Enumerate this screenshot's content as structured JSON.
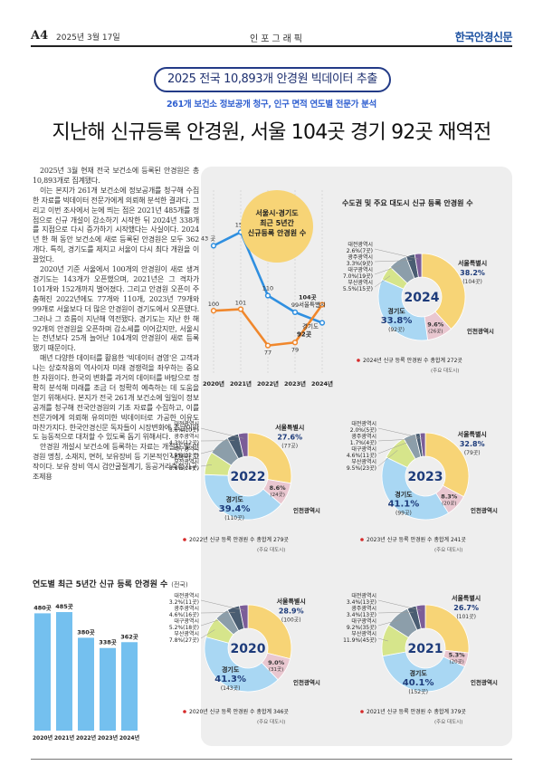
{
  "masthead": {
    "page": "A4",
    "date": "2025년 3월 17일",
    "section": "인포그래픽",
    "brand": "한국안경신문"
  },
  "banner": "2025 전국 10,893개 안경원 빅데이터 추출",
  "subtitle": "261개 보건소 정보공개 청구, 인구 면적 연도별 전문가 분석",
  "headline": "지난해 신규등록 안경원, 서울 104곳 경기 92곳 재역전",
  "article": [
    "2025년 3월 현재 전국 보건소에 등록된 안경원은 총 10,893개로 집계됐다.",
    "이는 본지가 261개 보건소에 정보공개를 청구해 수집한 자료를 빅데이터 전문가에게 의뢰해 분석한 결과다. 그리고 이번 조사에서 눈에 띄는 점은 2021년 485개를 정점으로 신규 개설이 감소하기 시작한 뒤 2024년 338개를 지점으로 다시 증가하기 시작했다는 사실이다. 2024년 한 해 동안 보건소에 새로 등록된 안경원은 모두 362개다. 특히, 경기도를 제치고 서울이 다시 최다 개원을 이끌었다.",
    "2020년 기준 서울에서 100개의 안경원이 새로 생겨 경기도는 143개가 오픈했으며, 2021년은 그 격차가 101개와 152개까지 벌어졌다. 그리고 안경원 오픈이 주춤해진 2022년에도 77개와 110개, 2023년 79개와 99개로 서울보다 더 많은 안경원이 경기도에서 오픈됐다. 그러나 그 흐름이 지난해 역전됐다. 경기도는 지난 한 해 92개의 안경원을 오픈하며 감소세를 이어갔지만, 서울시는 전년보다 25개 늘어난 104개의 안경원이 새로 등록됐기 때문이다.",
    "매년 다양한 데이터를 활용한 '빅데이터 경영'은 고객과 나는 상호작용의 역사이자 미래 경쟁력을 좌우하는 중요한 자원이다. 한국의 변화를 과거의 데이터를 바탕으로 정확히 분석해 미래를 조금 더 정확히 예측하는 데 도움을 얻기 위해서다. 본지가 전국 261개 보건소에 일일이 정보공개를 청구해 전국안경원의 기초 자료를 수집하고, 이를 전문가에게 의뢰해 유의미한 빅데이터로 가공한 이유도 마찬가지다. 한국안경신문 독자들이 시장변화에 조금이라도 능동적으로 대처할 수 있도록 돕기 위해서다.",
    "안경원 개설시 보건소에 등록하는 자료는 개설자 및 안경원 명칭, 소재지, 면허, 보유장비 등 기본적인 내용이 고작이다. 보유 장비 역시 검안굴절계기, 동공거리측정기구, 조제용"
  ],
  "line_chart": {
    "callout": [
      "서울시·경기도",
      "최근 5년간",
      "신규등록 안경원 수"
    ],
    "years": [
      "2020년",
      "2021년",
      "2022년",
      "2023년",
      "2024년"
    ],
    "seoul": [
      100,
      101,
      77,
      79,
      104
    ],
    "gyeonggi": [
      143,
      152,
      110,
      99,
      92
    ],
    "point_labels_seoul": [
      "100",
      "101",
      "77",
      "79"
    ],
    "point_labels_gyeonggi": [
      "143 곳",
      "152",
      "110",
      "99"
    ],
    "end_seoul": [
      "104곳",
      "서울특별시"
    ],
    "end_gyeonggi": [
      "경기도",
      "92곳"
    ],
    "colors": {
      "seoul": "#f0872c",
      "gyeonggi": "#2f8fe0"
    }
  },
  "donut_title": "수도권 및 주요 대도시 신규 등록 안경원 수",
  "donuts": [
    {
      "year": "2024",
      "total": "2024년 신규 등록 안경원 수 총합계 272곳",
      "note": "(주요 대도시)",
      "slices": [
        {
          "name": "서울특별시",
          "pct": "38.2%",
          "count": "(104곳)",
          "v": 38.2,
          "color": "#f7d476"
        },
        {
          "name": "인천광역시",
          "pct": "9.6%",
          "count": "(26곳)",
          "v": 9.6,
          "color": "#e9c7d0"
        },
        {
          "name": "경기도",
          "pct": "33.8%",
          "count": "(92곳)",
          "v": 33.8,
          "color": "#a9d7f3"
        },
        {
          "name": "부산광역시",
          "pct": "5.5%",
          "count": "(15곳)",
          "v": 5.5,
          "color": "#d6e58b"
        },
        {
          "name": "대구광역시",
          "pct": "7.0%",
          "count": "(19곳)",
          "v": 7.0,
          "color": "#8c9eaa"
        },
        {
          "name": "광주광역시",
          "pct": "3.3%",
          "count": "(9곳)",
          "v": 3.3,
          "color": "#4a5d72"
        },
        {
          "name": "대전광역시",
          "pct": "2.6%",
          "count": "(7곳)",
          "v": 2.6,
          "color": "#7b5d98"
        }
      ]
    },
    {
      "year": "2022",
      "total": "2022년 신규 등록 안경원 수 총합계 279곳",
      "note": "(주요 대도시)",
      "slices": [
        {
          "name": "서울특별시",
          "pct": "27.6%",
          "count": "(77곳)",
          "v": 27.6,
          "color": "#f7d476"
        },
        {
          "name": "인천광역시",
          "pct": "8.6%",
          "count": "(24곳)",
          "v": 8.6,
          "color": "#e9c7d0"
        },
        {
          "name": "경기도",
          "pct": "39.4%",
          "count": "(110곳)",
          "v": 39.4,
          "color": "#a9d7f3"
        },
        {
          "name": "부산광역시",
          "pct": "8.6%",
          "count": "(24곳)",
          "v": 8.6,
          "color": "#d6e58b"
        },
        {
          "name": "대구광역시",
          "pct": "7.9%",
          "count": "(22곳)",
          "v": 7.9,
          "color": "#8c9eaa"
        },
        {
          "name": "광주광역시",
          "pct": "4.3%",
          "count": "(12곳)",
          "v": 4.3,
          "color": "#4a5d72"
        },
        {
          "name": "대전광역시",
          "pct": "3.6%",
          "count": "(10곳)",
          "v": 3.6,
          "color": "#7b5d98"
        }
      ]
    },
    {
      "year": "2023",
      "total": "2023년 신규 등록 안경원 수 총합계 241곳",
      "note": "(주요 대도시)",
      "slices": [
        {
          "name": "서울특별시",
          "pct": "32.8%",
          "count": "(79곳)",
          "v": 32.8,
          "color": "#f7d476"
        },
        {
          "name": "인천광역시",
          "pct": "8.3%",
          "count": "(20곳)",
          "v": 8.3,
          "color": "#e9c7d0"
        },
        {
          "name": "경기도",
          "pct": "41.1%",
          "count": "(99곳)",
          "v": 41.1,
          "color": "#a9d7f3"
        },
        {
          "name": "부산광역시",
          "pct": "9.5%",
          "count": "(23곳)",
          "v": 9.5,
          "color": "#d6e58b"
        },
        {
          "name": "대구광역시",
          "pct": "4.6%",
          "count": "(11곳)",
          "v": 4.6,
          "color": "#8c9eaa"
        },
        {
          "name": "광주광역시",
          "pct": "1.7%",
          "count": "(4곳)",
          "v": 1.7,
          "color": "#4a5d72"
        },
        {
          "name": "대전광역시",
          "pct": "2.0%",
          "count": "(5곳)",
          "v": 2.0,
          "color": "#7b5d98"
        }
      ]
    },
    {
      "year": "2020",
      "total": "2020년 신규 등록 안경원 수 총합계 346곳",
      "note": "(주요 대도시)",
      "slices": [
        {
          "name": "서울특별시",
          "pct": "28.9%",
          "count": "(100곳)",
          "v": 28.9,
          "color": "#f7d476"
        },
        {
          "name": "인천광역시",
          "pct": "9.0%",
          "count": "(31곳)",
          "v": 9.0,
          "color": "#e9c7d0"
        },
        {
          "name": "경기도",
          "pct": "41.3%",
          "count": "(143곳)",
          "v": 41.3,
          "color": "#a9d7f3"
        },
        {
          "name": "부산광역시",
          "pct": "7.8%",
          "count": "(27곳)",
          "v": 7.8,
          "color": "#d6e58b"
        },
        {
          "name": "대구광역시",
          "pct": "5.2%",
          "count": "(18곳)",
          "v": 5.2,
          "color": "#8c9eaa"
        },
        {
          "name": "광주광역시",
          "pct": "4.6%",
          "count": "(16곳)",
          "v": 4.6,
          "color": "#4a5d72"
        },
        {
          "name": "대전광역시",
          "pct": "3.2%",
          "count": "(11곳)",
          "v": 3.2,
          "color": "#7b5d98"
        }
      ]
    },
    {
      "year": "2021",
      "total": "2021년 신규 등록 안경원 수 총합계 379곳",
      "note": "(주요 대도시)",
      "slices": [
        {
          "name": "서울특별시",
          "pct": "26.7%",
          "count": "(101곳)",
          "v": 26.7,
          "color": "#f7d476"
        },
        {
          "name": "인천광역시",
          "pct": "5.3%",
          "count": "(20곳)",
          "v": 5.3,
          "color": "#e9c7d0"
        },
        {
          "name": "경기도",
          "pct": "40.1%",
          "count": "(152곳)",
          "v": 40.1,
          "color": "#a9d7f3"
        },
        {
          "name": "부산광역시",
          "pct": "11.9%",
          "count": "(45곳)",
          "v": 11.9,
          "color": "#d6e58b"
        },
        {
          "name": "대구광역시",
          "pct": "9.2%",
          "count": "(35곳)",
          "v": 9.2,
          "color": "#8c9eaa"
        },
        {
          "name": "광주광역시",
          "pct": "3.4%",
          "count": "(13곳)",
          "v": 3.4,
          "color": "#4a5d72"
        },
        {
          "name": "대전광역시",
          "pct": "3.4%",
          "count": "(13곳)",
          "v": 3.4,
          "color": "#7b5d98"
        }
      ]
    }
  ],
  "bar_chart": {
    "title": "연도별 최근 5년간 신규 등록 안경원 수",
    "unit": "(전국)",
    "categories": [
      "2020년",
      "2021년",
      "2022년",
      "2023년",
      "2024년"
    ],
    "values": [
      480,
      485,
      380,
      338,
      362
    ],
    "labels": [
      "480곳",
      "485곳",
      "380곳",
      "338곳",
      "362곳"
    ],
    "color": "#74c0ef"
  },
  "chart_data": [
    {
      "type": "line",
      "x": [
        "2020년",
        "2021년",
        "2022년",
        "2023년",
        "2024년"
      ],
      "series": [
        {
          "name": "서울특별시",
          "values": [
            100,
            101,
            77,
            79,
            104
          ]
        },
        {
          "name": "경기도",
          "values": [
            143,
            152,
            110,
            99,
            92
          ]
        }
      ],
      "title": "서울시·경기도 최근 5년간 신규등록 안경원 수"
    },
    {
      "type": "bar",
      "categories": [
        "2020년",
        "2021년",
        "2022년",
        "2023년",
        "2024년"
      ],
      "values": [
        480,
        485,
        380,
        338,
        362
      ],
      "title": "연도별 최근 5년간 신규 등록 안경원 수"
    }
  ]
}
